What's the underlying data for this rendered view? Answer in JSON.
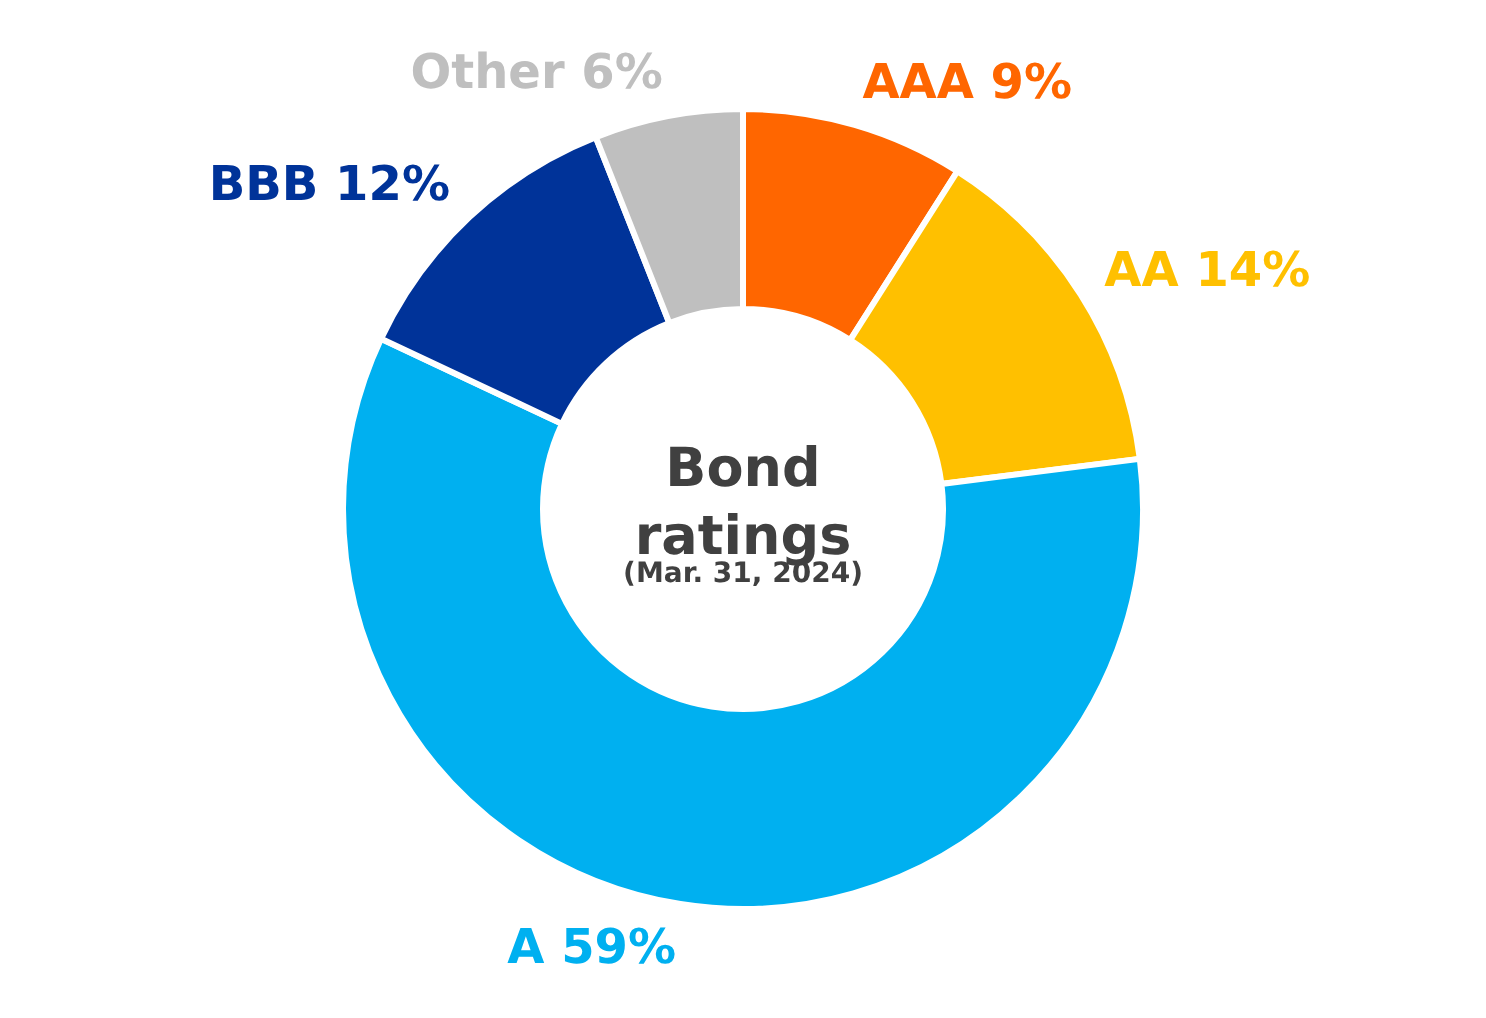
{
  "chart_data": {
    "type": "donut",
    "title": "Bond ratings",
    "subtitle": "(Mar. 31, 2024)",
    "categories": [
      "AAA",
      "AA",
      "A",
      "BBB",
      "Other"
    ],
    "values": [
      9,
      14,
      59,
      12,
      6
    ],
    "value_labels": [
      "9%",
      "14%",
      "59%",
      "12%",
      "6%"
    ],
    "colors": [
      "#ff6600",
      "#ffc000",
      "#00b0f0",
      "#003399",
      "#bfbfbf"
    ]
  }
}
